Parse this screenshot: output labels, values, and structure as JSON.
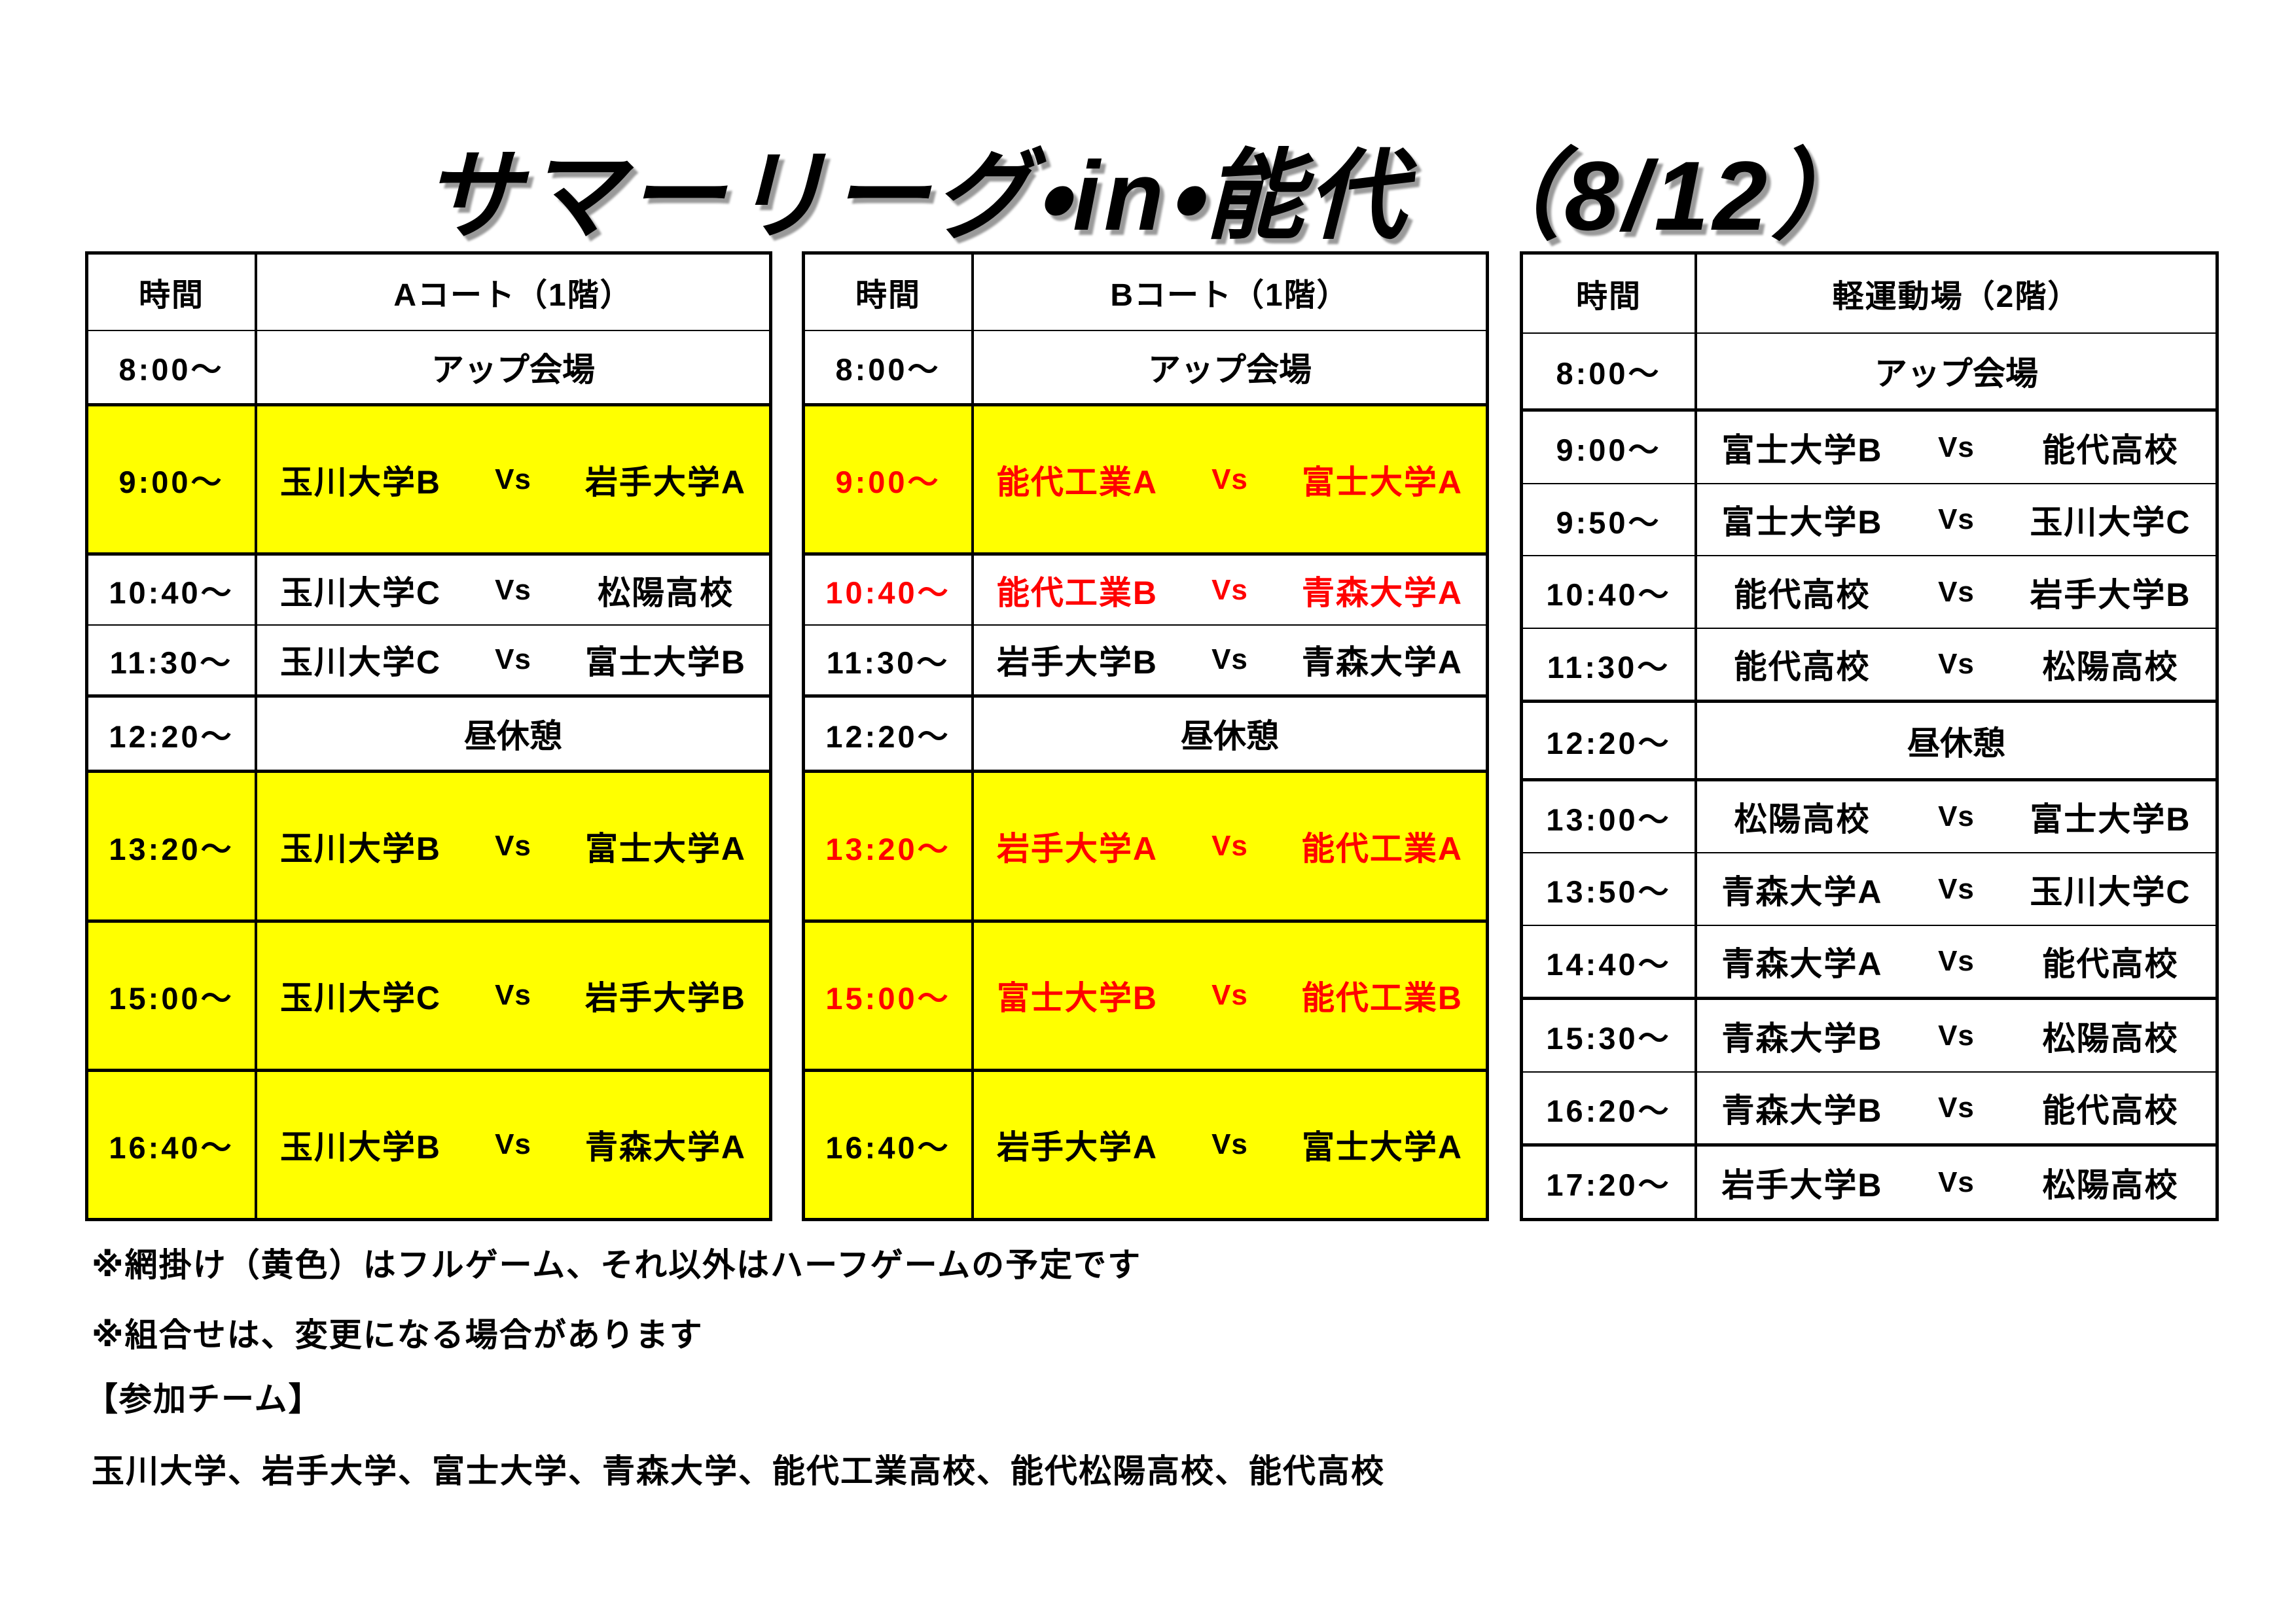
{
  "title": "サマーリーグ・in・能代　（8/12）",
  "colors": {
    "full_game_highlight": "#ffff00",
    "b_court_accent_text": "#ff0000",
    "grid_line": "#000000",
    "title_shadow": "#9a9a9a"
  },
  "vs_label": "Vs",
  "tables": [
    {
      "time_header": "時間",
      "venue": "Aコート（1階）",
      "rows": [
        {
          "type": "label",
          "time": "8:00～",
          "label": "アップ会場",
          "yellow": false,
          "red": false,
          "full": false,
          "sep": "thick"
        },
        {
          "type": "match",
          "time": "9:00～",
          "home": "玉川大学B",
          "away": "岩手大学A",
          "yellow": true,
          "red": false,
          "full": true,
          "sep": "thick"
        },
        {
          "type": "match",
          "time": "10:40～",
          "home": "玉川大学C",
          "away": "松陽高校",
          "yellow": false,
          "red": false,
          "full": false,
          "sep": "thin"
        },
        {
          "type": "match",
          "time": "11:30～",
          "home": "玉川大学C",
          "away": "富士大学B",
          "yellow": false,
          "red": false,
          "full": false,
          "sep": "thick"
        },
        {
          "type": "label",
          "time": "12:20～",
          "label": "昼休憩",
          "yellow": false,
          "red": false,
          "full": false,
          "sep": "thick"
        },
        {
          "type": "match",
          "time": "13:20～",
          "home": "玉川大学B",
          "away": "富士大学A",
          "yellow": true,
          "red": false,
          "full": true,
          "sep": "thick"
        },
        {
          "type": "match",
          "time": "15:00～",
          "home": "玉川大学C",
          "away": "岩手大学B",
          "yellow": true,
          "red": false,
          "full": true,
          "sep": "thick"
        },
        {
          "type": "match",
          "time": "16:40～",
          "home": "玉川大学B",
          "away": "青森大学A",
          "yellow": true,
          "red": false,
          "full": true,
          "sep": "none"
        }
      ]
    },
    {
      "time_header": "時間",
      "venue": "Bコート（1階）",
      "rows": [
        {
          "type": "label",
          "time": "8:00～",
          "label": "アップ会場",
          "yellow": false,
          "red": false,
          "full": false,
          "sep": "thick"
        },
        {
          "type": "match",
          "time": "9:00～",
          "home": "能代工業A",
          "away": "富士大学A",
          "yellow": true,
          "red": true,
          "full": true,
          "sep": "thick"
        },
        {
          "type": "match",
          "time": "10:40～",
          "home": "能代工業B",
          "away": "青森大学A",
          "yellow": false,
          "red": true,
          "full": false,
          "sep": "thin"
        },
        {
          "type": "match",
          "time": "11:30～",
          "home": "岩手大学B",
          "away": "青森大学A",
          "yellow": false,
          "red": false,
          "full": false,
          "sep": "thick"
        },
        {
          "type": "label",
          "time": "12:20～",
          "label": "昼休憩",
          "yellow": false,
          "red": false,
          "full": false,
          "sep": "thick"
        },
        {
          "type": "match",
          "time": "13:20～",
          "home": "岩手大学A",
          "away": "能代工業A",
          "yellow": true,
          "red": true,
          "full": true,
          "sep": "thick"
        },
        {
          "type": "match",
          "time": "15:00～",
          "home": "富士大学B",
          "away": "能代工業B",
          "yellow": true,
          "red": true,
          "full": true,
          "sep": "thick"
        },
        {
          "type": "match",
          "time": "16:40～",
          "home": "岩手大学A",
          "away": "富士大学A",
          "yellow": true,
          "red": false,
          "full": true,
          "sep": "none"
        }
      ]
    },
    {
      "time_header": "時間",
      "venue": "軽運動場（2階）",
      "rows": [
        {
          "type": "label",
          "time": "8:00～",
          "label": "アップ会場",
          "yellow": false,
          "red": false,
          "full": false,
          "sep": "thick"
        },
        {
          "type": "match",
          "time": "9:00～",
          "home": "富士大学B",
          "away": "能代高校",
          "yellow": false,
          "red": false,
          "full": false,
          "sep": "thin"
        },
        {
          "type": "match",
          "time": "9:50～",
          "home": "富士大学B",
          "away": "玉川大学C",
          "yellow": false,
          "red": false,
          "full": false,
          "sep": "thin"
        },
        {
          "type": "match",
          "time": "10:40～",
          "home": "能代高校",
          "away": "岩手大学B",
          "yellow": false,
          "red": false,
          "full": false,
          "sep": "thin"
        },
        {
          "type": "match",
          "time": "11:30～",
          "home": "能代高校",
          "away": "松陽高校",
          "yellow": false,
          "red": false,
          "full": false,
          "sep": "thick"
        },
        {
          "type": "label",
          "time": "12:20～",
          "label": "昼休憩",
          "yellow": false,
          "red": false,
          "full": false,
          "sep": "thick"
        },
        {
          "type": "match",
          "time": "13:00～",
          "home": "松陽高校",
          "away": "富士大学B",
          "yellow": false,
          "red": false,
          "full": false,
          "sep": "thin"
        },
        {
          "type": "match",
          "time": "13:50～",
          "home": "青森大学A",
          "away": "玉川大学C",
          "yellow": false,
          "red": false,
          "full": false,
          "sep": "thin"
        },
        {
          "type": "match",
          "time": "14:40～",
          "home": "青森大学A",
          "away": "能代高校",
          "yellow": false,
          "red": false,
          "full": false,
          "sep": "thick"
        },
        {
          "type": "match",
          "time": "15:30～",
          "home": "青森大学B",
          "away": "松陽高校",
          "yellow": false,
          "red": false,
          "full": false,
          "sep": "thin"
        },
        {
          "type": "match",
          "time": "16:20～",
          "home": "青森大学B",
          "away": "能代高校",
          "yellow": false,
          "red": false,
          "full": false,
          "sep": "thick"
        },
        {
          "type": "match",
          "time": "17:20～",
          "home": "岩手大学B",
          "away": "松陽高校",
          "yellow": false,
          "red": false,
          "full": false,
          "sep": "none"
        }
      ]
    }
  ],
  "notes": [
    "※網掛け（黄色）はフルゲーム、それ以外はハーフゲームの予定です",
    "※組合せは、変更になる場合があります"
  ],
  "participants_heading": "【参加チーム】",
  "participants": "玉川大学、岩手大学、富士大学、青森大学、能代工業高校、能代松陽高校、能代高校"
}
